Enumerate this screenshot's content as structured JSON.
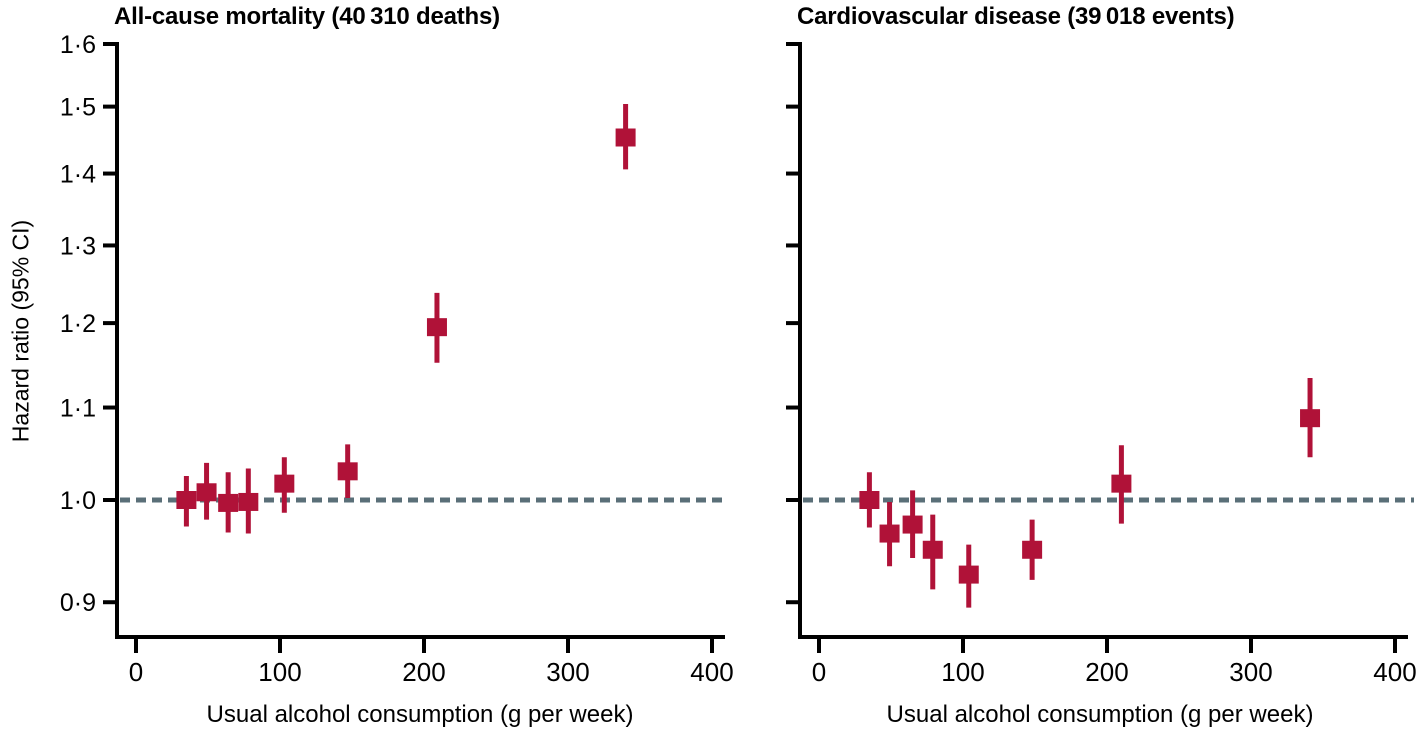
{
  "figure": {
    "background": "#ffffff",
    "marker_color": "#b01238",
    "reference_line_color": "#5a6f78",
    "axis_color": "#000000",
    "text_color": "#000000"
  },
  "chart_data": [
    {
      "type": "scatter",
      "title": "All-cause mortality (40 310 deaths)",
      "xlabel": "Usual alcohol consumption (g per week)",
      "ylabel": "Hazard ratio (95% CI)",
      "y_scale": "log",
      "xlim": [
        0,
        400
      ],
      "ylim": [
        0.87,
        1.6
      ],
      "grid": "off",
      "reference_line": 1.0,
      "x_ticks": [
        0,
        100,
        200,
        300,
        400
      ],
      "y_ticks": [
        {
          "value": 1.6,
          "label": "1·6"
        },
        {
          "value": 1.5,
          "label": "1·5"
        },
        {
          "value": 1.4,
          "label": "1·4"
        },
        {
          "value": 1.3,
          "label": "1·3"
        },
        {
          "value": 1.2,
          "label": "1·2"
        },
        {
          "value": 1.1,
          "label": "1·1"
        },
        {
          "value": 1.0,
          "label": "1·0"
        },
        {
          "value": 0.9,
          "label": "0·9"
        }
      ],
      "series": [
        {
          "name": "Hazard ratio (95% CI)",
          "points": [
            {
              "x": 35,
              "hr": 1.0,
              "lo": 0.973,
              "hi": 1.025
            },
            {
              "x": 49,
              "hr": 1.008,
              "lo": 0.98,
              "hi": 1.039
            },
            {
              "x": 64,
              "hr": 0.997,
              "lo": 0.967,
              "hi": 1.029
            },
            {
              "x": 78,
              "hr": 0.998,
              "lo": 0.966,
              "hi": 1.033
            },
            {
              "x": 103,
              "hr": 1.017,
              "lo": 0.987,
              "hi": 1.045
            },
            {
              "x": 147,
              "hr": 1.03,
              "lo": 1.002,
              "hi": 1.059
            },
            {
              "x": 209,
              "hr": 1.195,
              "lo": 1.152,
              "hi": 1.238
            },
            {
              "x": 340,
              "hr": 1.453,
              "lo": 1.406,
              "hi": 1.504
            }
          ]
        }
      ]
    },
    {
      "type": "scatter",
      "title": "Cardiovascular disease (39 018 events)",
      "xlabel": "Usual alcohol consumption (g per week)",
      "ylabel": "",
      "y_scale": "log",
      "xlim": [
        0,
        400
      ],
      "ylim": [
        0.87,
        1.6
      ],
      "grid": "off",
      "reference_line": 1.0,
      "x_ticks": [
        0,
        100,
        200,
        300,
        400
      ],
      "y_ticks": [
        {
          "value": 1.6,
          "label": ""
        },
        {
          "value": 1.5,
          "label": ""
        },
        {
          "value": 1.4,
          "label": ""
        },
        {
          "value": 1.3,
          "label": ""
        },
        {
          "value": 1.2,
          "label": ""
        },
        {
          "value": 1.1,
          "label": ""
        },
        {
          "value": 1.0,
          "label": ""
        },
        {
          "value": 0.9,
          "label": ""
        }
      ],
      "series": [
        {
          "name": "Hazard ratio (95% CI)",
          "points": [
            {
              "x": 35,
              "hr": 1.0,
              "lo": 0.972,
              "hi": 1.029
            },
            {
              "x": 49,
              "hr": 0.966,
              "lo": 0.934,
              "hi": 0.998
            },
            {
              "x": 65,
              "hr": 0.975,
              "lo": 0.942,
              "hi": 1.01
            },
            {
              "x": 79,
              "hr": 0.95,
              "lo": 0.912,
              "hi": 0.985
            },
            {
              "x": 104,
              "hr": 0.926,
              "lo": 0.895,
              "hi": 0.955
            },
            {
              "x": 148,
              "hr": 0.95,
              "lo": 0.921,
              "hi": 0.98
            },
            {
              "x": 210,
              "hr": 1.017,
              "lo": 0.976,
              "hi": 1.058
            },
            {
              "x": 341,
              "hr": 1.088,
              "lo": 1.045,
              "hi": 1.134
            }
          ]
        }
      ]
    }
  ]
}
